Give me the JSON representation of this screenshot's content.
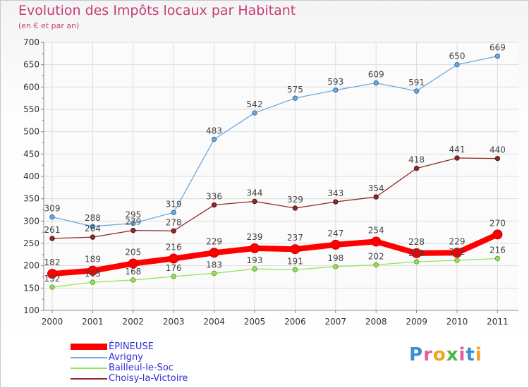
{
  "title": "Evolution des Impôts locaux par Habitant",
  "subtitle": "(en € et par an)",
  "brand": {
    "letters": [
      {
        "ch": "P",
        "color": "#3a8fd6"
      },
      {
        "ch": "r",
        "color": "#e85c9a"
      },
      {
        "ch": "o",
        "color": "#f2a31b"
      },
      {
        "ch": "x",
        "color": "#4bb848"
      },
      {
        "ch": "i",
        "color": "#e85c9a"
      },
      {
        "ch": "t",
        "color": "#3a8fd6"
      },
      {
        "ch": "i",
        "color": "#f2a31b"
      }
    ]
  },
  "chart_data": {
    "type": "line",
    "x": [
      "2000",
      "2001",
      "2002",
      "2003",
      "2004",
      "2005",
      "2006",
      "2007",
      "2008",
      "2009",
      "2010",
      "2011"
    ],
    "ylim": [
      100,
      700
    ],
    "yticks": [
      100,
      150,
      200,
      250,
      300,
      350,
      400,
      450,
      500,
      550,
      600,
      650,
      700
    ],
    "grid": true,
    "legend_position": "bottom-left",
    "series": [
      {
        "name": "ÉPINEUSE",
        "color": "#ff0000",
        "values": [
          182,
          189,
          205,
          216,
          229,
          239,
          237,
          247,
          254,
          228,
          229,
          270
        ]
      },
      {
        "name": "Avrigny",
        "color": "#6fa8dc",
        "values": [
          309,
          288,
          295,
          319,
          483,
          542,
          575,
          593,
          609,
          591,
          650,
          669
        ]
      },
      {
        "name": "Bailleul-le-Soc",
        "color": "#9be05c",
        "values": [
          152,
          163,
          168,
          176,
          183,
          193,
          191,
          198,
          202,
          209,
          212,
          216
        ]
      },
      {
        "name": "Choisy-la-Victoire",
        "color": "#8b2a2a",
        "values": [
          261,
          264,
          279,
          278,
          336,
          344,
          329,
          343,
          354,
          418,
          441,
          440
        ]
      }
    ],
    "data_labels": [
      [
        "182",
        "189",
        "205",
        "216",
        "229",
        "239",
        "237",
        "247",
        "254",
        "228",
        "229",
        "270"
      ],
      [
        "309",
        "288",
        "295",
        "319",
        "483",
        "542",
        "575",
        "593",
        "609",
        "591",
        "650",
        "669"
      ],
      [
        "152",
        "163",
        "168",
        "176",
        "183",
        "193",
        "191",
        "198",
        "202",
        "209",
        "212",
        "216"
      ],
      [
        "261",
        "264",
        "279",
        "278",
        "336",
        "344",
        "329",
        "343",
        "354",
        "418",
        "441",
        "440"
      ]
    ]
  }
}
